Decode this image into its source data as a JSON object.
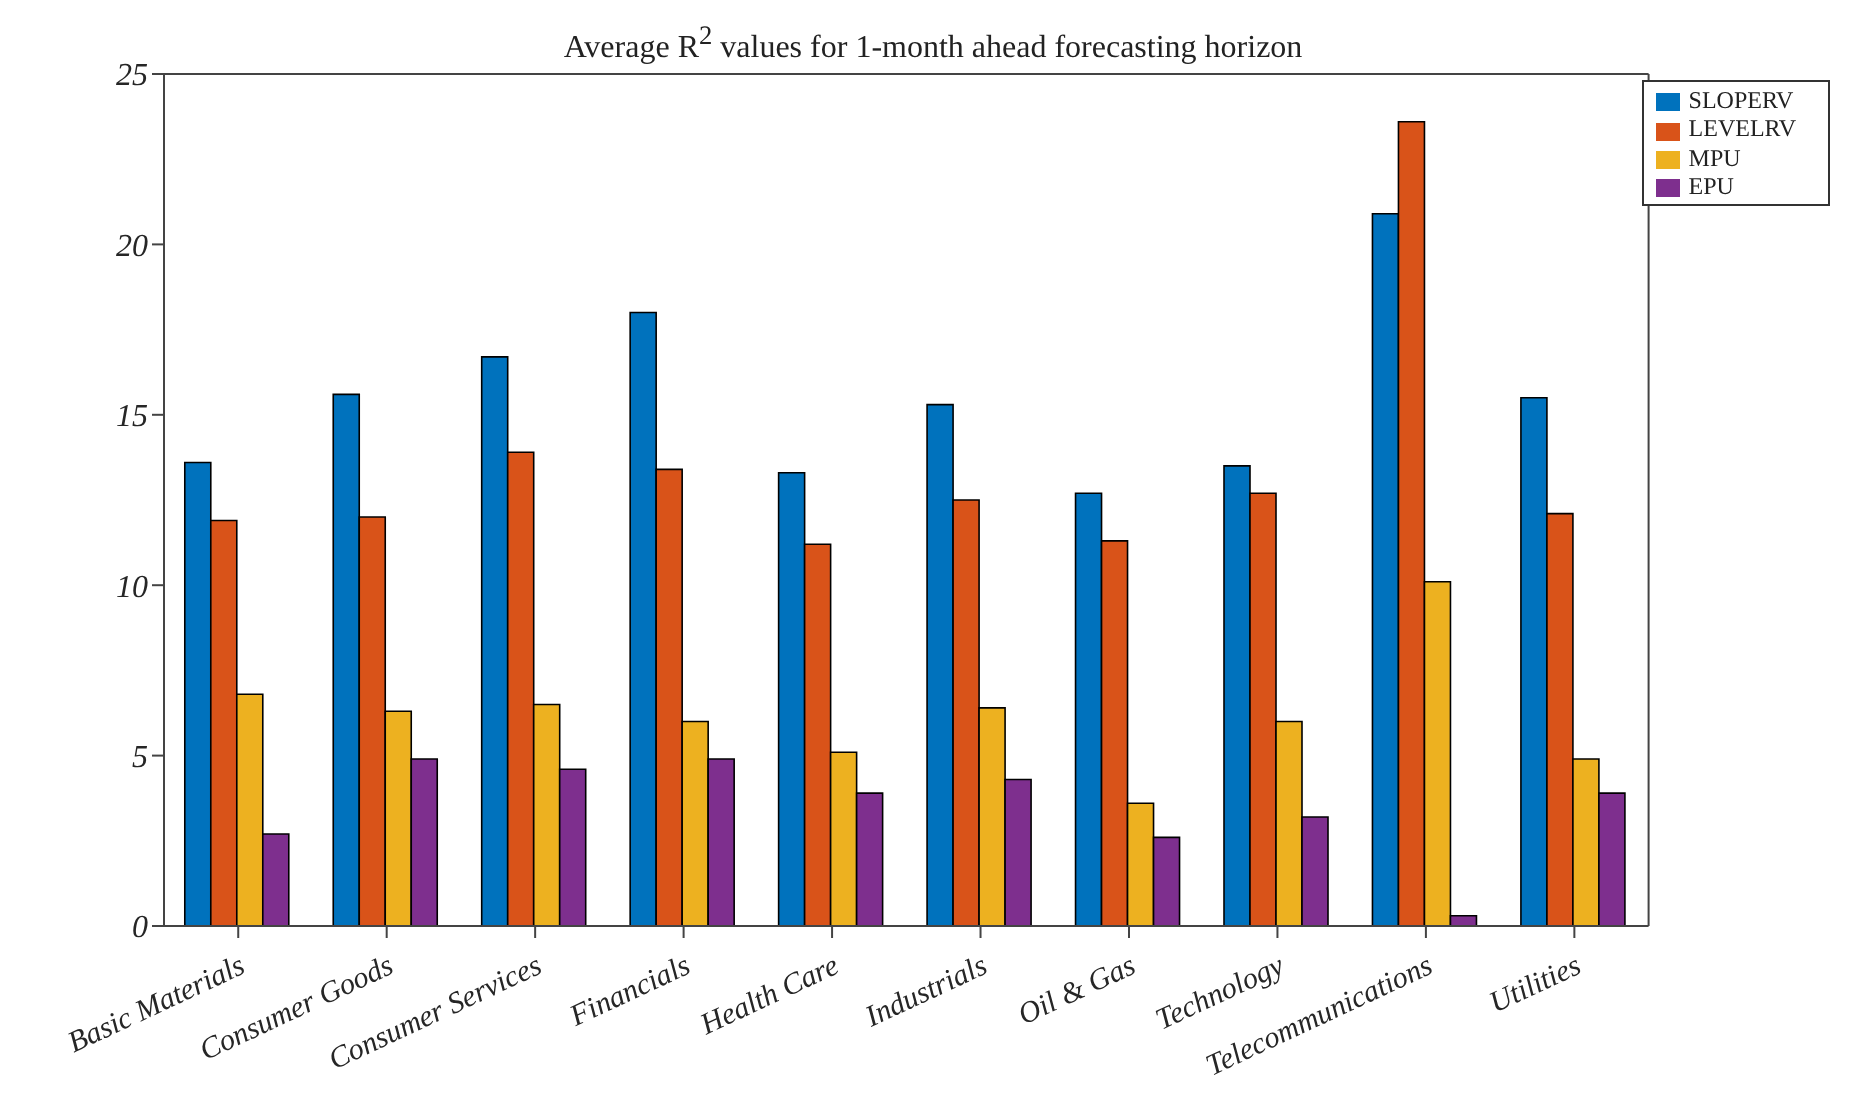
{
  "chart_data": {
    "type": "bar",
    "title": "Average R$^{2}$ values for 1-month ahead forecasting horizon",
    "categories": [
      "Basic Materials",
      "Consumer Goods",
      "Consumer Services",
      "Financials",
      "Health Care",
      "Industrials",
      "Oil & Gas",
      "Technology",
      "Telecommunications",
      "Utilities"
    ],
    "series": [
      {
        "name": "SLOPERV",
        "color": "#0072bd",
        "values": [
          13.6,
          15.6,
          16.7,
          18.0,
          13.3,
          15.3,
          12.7,
          13.5,
          20.9,
          15.5
        ]
      },
      {
        "name": "LEVELRV",
        "color": "#d95319",
        "values": [
          11.9,
          12.0,
          13.9,
          13.4,
          11.2,
          12.5,
          11.3,
          12.7,
          23.6,
          12.1
        ]
      },
      {
        "name": "MPU",
        "color": "#edb120",
        "values": [
          6.8,
          6.3,
          6.5,
          6.0,
          5.1,
          6.4,
          3.6,
          6.0,
          10.1,
          4.9
        ]
      },
      {
        "name": "EPU",
        "color": "#7e2f8e",
        "values": [
          2.7,
          4.9,
          4.6,
          4.9,
          3.9,
          4.3,
          2.6,
          3.2,
          0.3,
          3.9
        ]
      }
    ],
    "ylim": [
      0,
      25
    ],
    "yticks": [
      0,
      5,
      10,
      15,
      20,
      25
    ],
    "grid": false,
    "legend": "top right"
  }
}
